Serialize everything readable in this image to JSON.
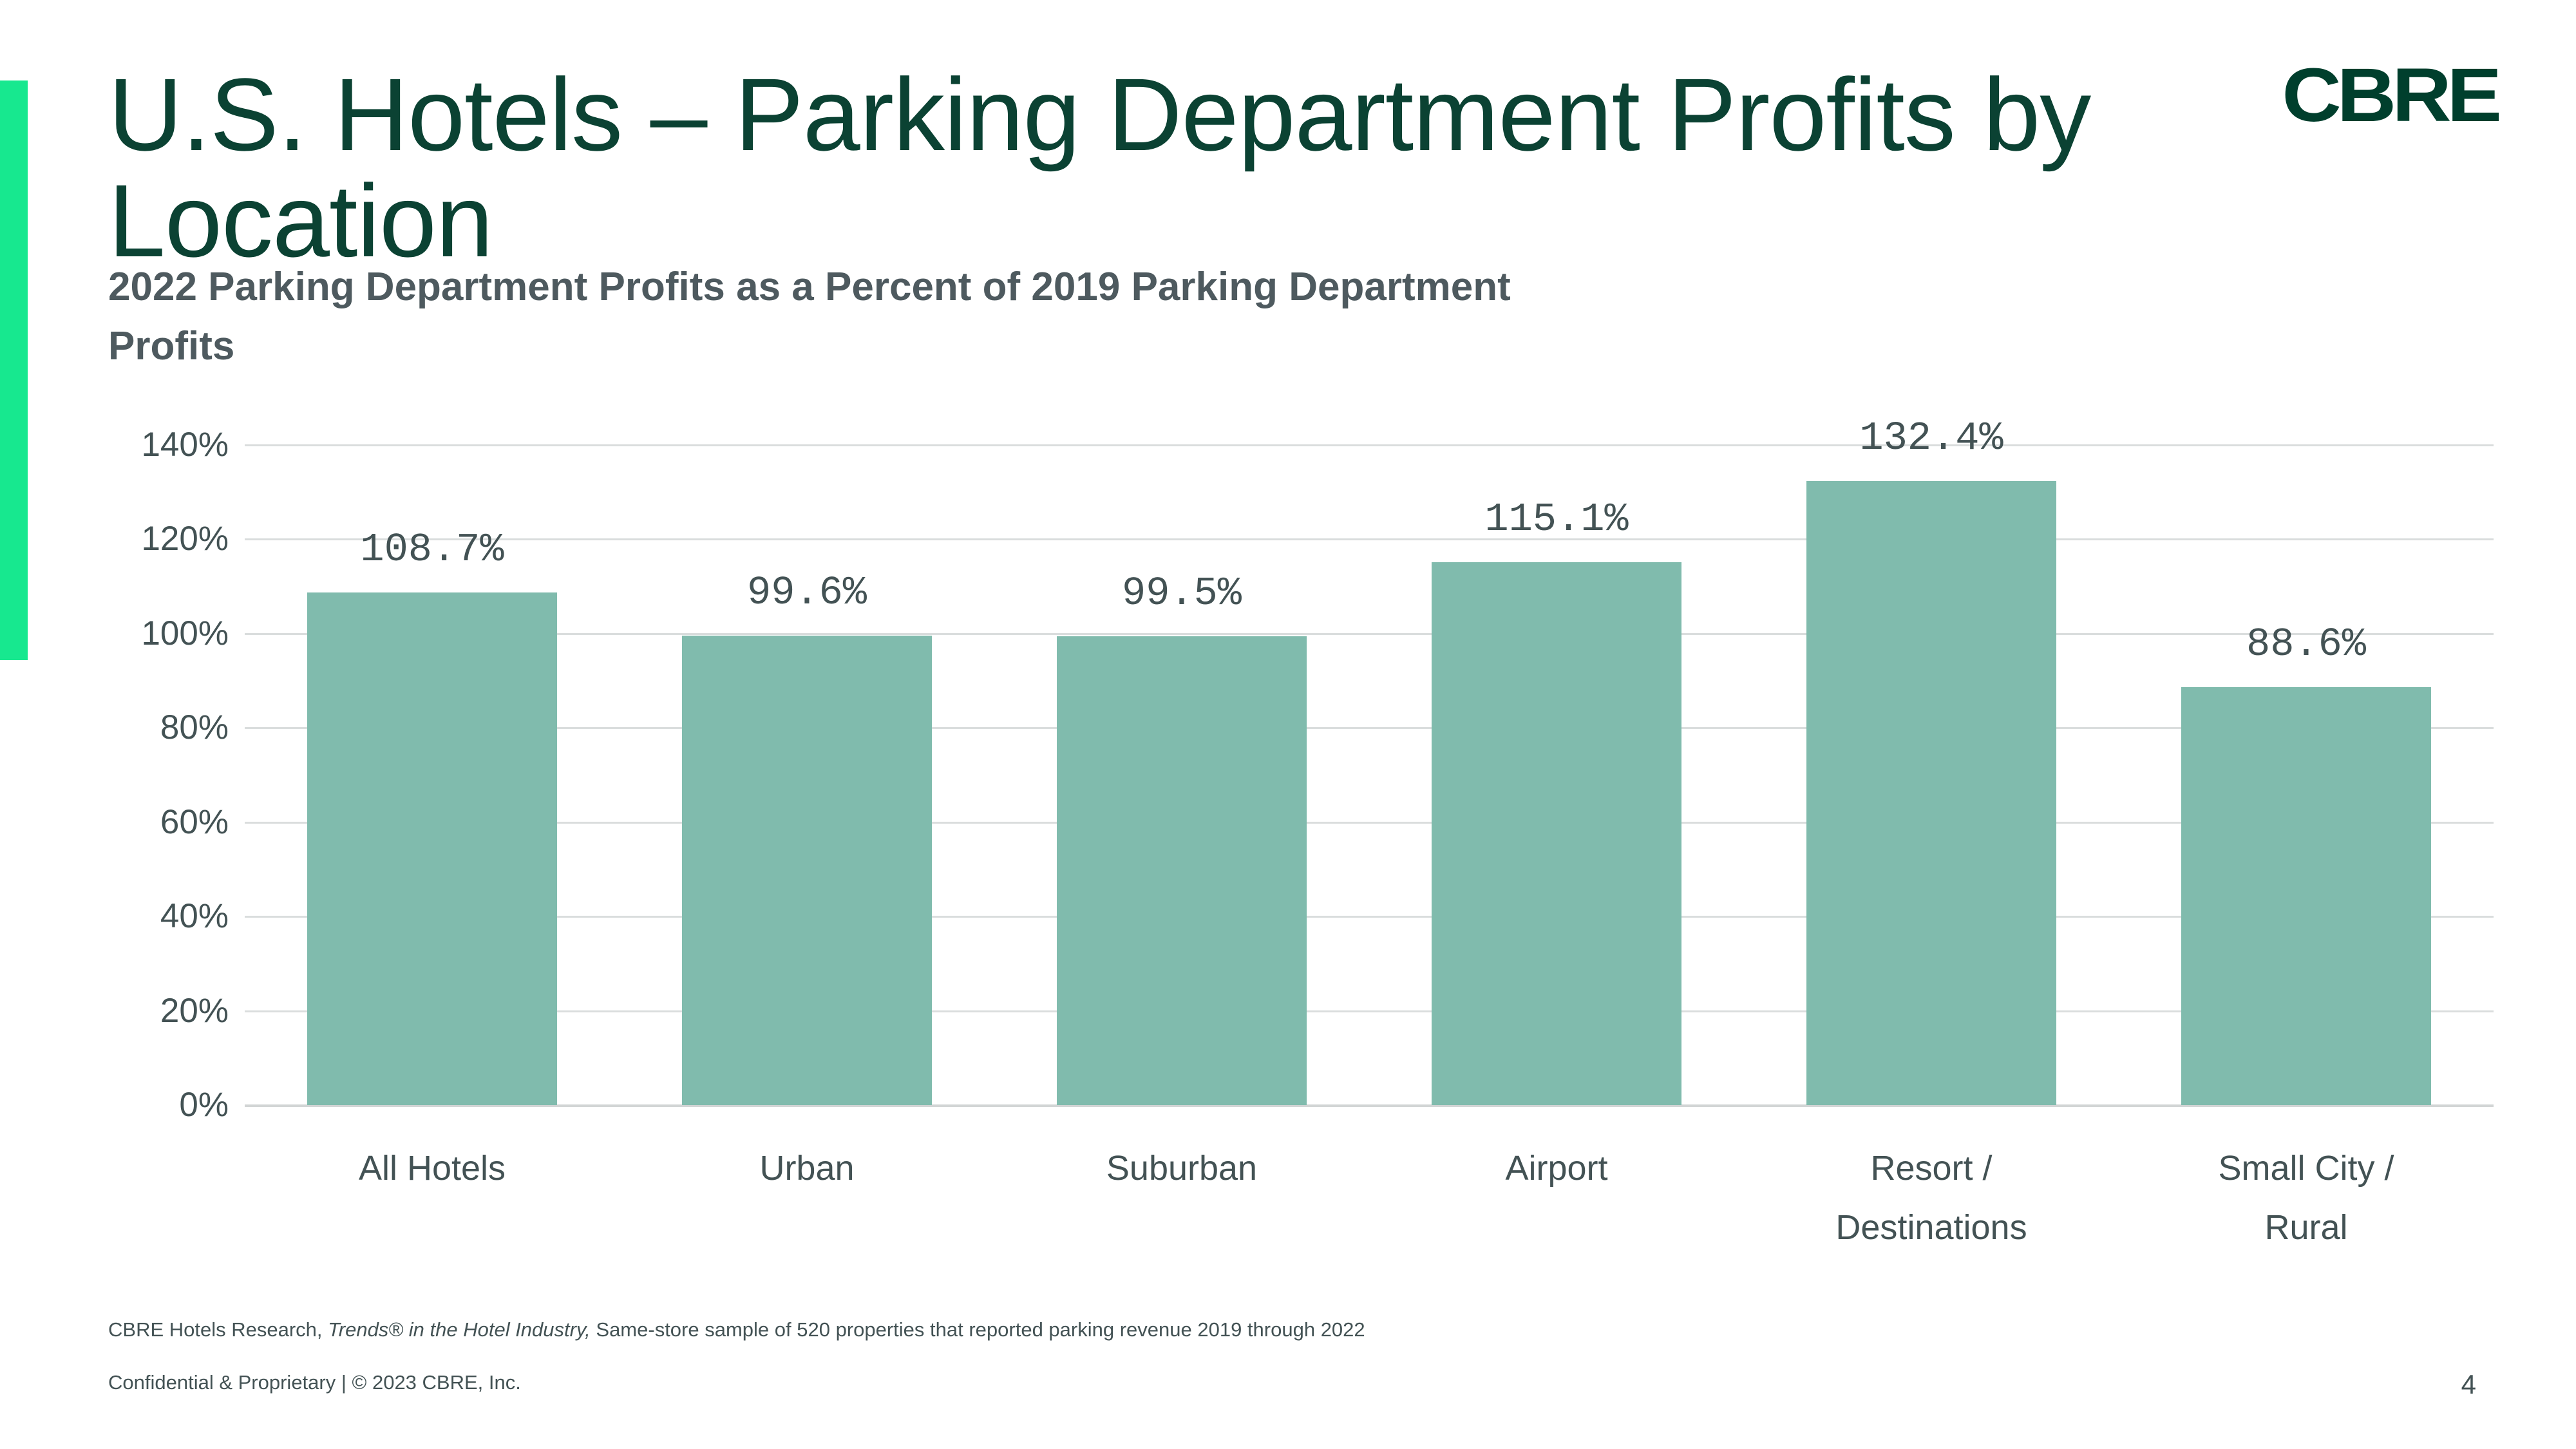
{
  "slide": {
    "title_line1": "U.S. Hotels – Parking Department Profits by",
    "title_line2": "Location",
    "subtitle_line1": "2022 Parking Department Profits as a Percent of 2019 Parking Department",
    "subtitle_line2": "Profits",
    "logo_text": "CBRE",
    "colors": {
      "accent_green": "#17E88F",
      "brand_dark_green": "#003F2D",
      "title_green": "#0B4233",
      "text_gray": "#435254",
      "subtitle_gray": "#4E5A5F",
      "gridline_gray": "#DADDDD"
    }
  },
  "chart_data": {
    "type": "bar",
    "title": "2022 Parking Department Profits as a Percent of 2019 Parking Department Profits",
    "categories": [
      "All Hotels",
      "Urban",
      "Suburban",
      "Airport",
      "Resort /\nDestinations",
      "Small City /\nRural"
    ],
    "values": [
      108.7,
      99.6,
      99.5,
      115.1,
      132.4,
      88.6
    ],
    "value_labels": [
      "108.7%",
      "99.6%",
      "99.5%",
      "115.1%",
      "132.4%",
      "88.6%"
    ],
    "xlabel": "",
    "ylabel": "",
    "ylim": [
      0,
      140
    ],
    "ytick_step": 20,
    "ytick_labels": [
      "0%",
      "20%",
      "40%",
      "60%",
      "80%",
      "100%",
      "120%",
      "140%"
    ],
    "grid": true,
    "legend": false,
    "bar_color": "#80BBAD"
  },
  "footer": {
    "source_regular1": "CBRE Hotels Research, ",
    "source_italic": "Trends® in the Hotel Industry,",
    "source_regular2": " Same-store sample of 520 properties that reported parking revenue 2019 through 2022",
    "confidential": "Confidential & Proprietary | © 2023 CBRE, Inc.",
    "page_number": "4"
  }
}
